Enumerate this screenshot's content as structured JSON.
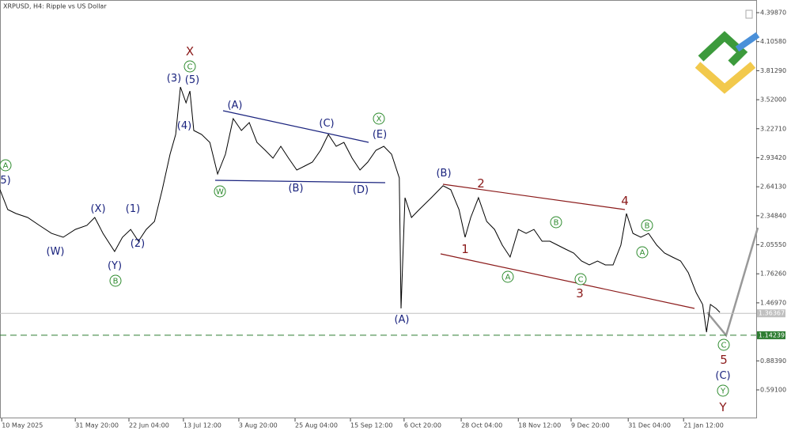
{
  "chart_data": {
    "type": "line",
    "title": "XRPUSD, H4:  Ripple vs US Dollar",
    "color": "#000000",
    "x": [
      0,
      18,
      37,
      64,
      91,
      119,
      146,
      174,
      201,
      219,
      238,
      265,
      283,
      302,
      320,
      338,
      357,
      375,
      393,
      406,
      417,
      430,
      439,
      448,
      466,
      485,
      503,
      521,
      539,
      558,
      576,
      594,
      613,
      631,
      649,
      667,
      686,
      704,
      722,
      741,
      759,
      777,
      795,
      814,
      832,
      850,
      869,
      887,
      905,
      923,
      927,
      936,
      951,
      969,
      997,
      1024,
      1042,
      1061,
      1075,
      1088,
      1106,
      1125,
      1143,
      1161,
      1179,
      1198,
      1216,
      1234,
      1253,
      1271,
      1289,
      1307,
      1326,
      1344,
      1362,
      1381,
      1399,
      1417,
      1435,
      1448,
      1463,
      1481,
      1499,
      1518,
      1536,
      1554,
      1573,
      1591,
      1609,
      1624,
      1633,
      1642,
      1655,
      1664
    ],
    "values": [
      2.611,
      2.411,
      2.371,
      2.331,
      2.251,
      2.171,
      2.132,
      2.211,
      2.251,
      2.331,
      2.171,
      1.988,
      2.132,
      2.211,
      2.092,
      2.211,
      2.291,
      2.611,
      2.97,
      3.169,
      3.648,
      3.489,
      3.608,
      3.209,
      3.169,
      3.089,
      2.77,
      2.97,
      3.329,
      3.209,
      3.289,
      3.089,
      3.01,
      2.93,
      3.05,
      2.93,
      2.81,
      2.85,
      2.89,
      3.01,
      3.169,
      3.05,
      3.089,
      2.93,
      2.81,
      2.89,
      3.01,
      3.05,
      2.97,
      2.73,
      1.413,
      2.531,
      2.331,
      2.411,
      2.531,
      2.651,
      2.611,
      2.411,
      2.132,
      2.331,
      2.531,
      2.291,
      2.211,
      2.052,
      1.932,
      2.211,
      2.171,
      2.211,
      2.092,
      2.092,
      2.052,
      2.012,
      1.972,
      1.892,
      1.852,
      1.892,
      1.852,
      1.852,
      2.052,
      2.371,
      2.171,
      2.132,
      2.171,
      2.052,
      1.972,
      1.932,
      1.892,
      1.773,
      1.573,
      1.453,
      1.174,
      1.453,
      1.413,
      1.373
    ],
    "xlim": [
      0,
      1746
    ],
    "xticks": [
      {
        "value": 4,
        "label": "10 May 2025"
      },
      {
        "value": 174,
        "label": "31 May 20:00"
      },
      {
        "value": 298,
        "label": "22 Jun 04:00"
      },
      {
        "value": 424,
        "label": "13 Jul 12:00"
      },
      {
        "value": 552,
        "label": "3 Aug 20:00"
      },
      {
        "value": 682,
        "label": "25 Aug 04:00"
      },
      {
        "value": 810,
        "label": "15 Sep 12:00"
      },
      {
        "value": 934,
        "label": "6 Oct 20:00"
      },
      {
        "value": 1066,
        "label": "28 Oct 04:00"
      },
      {
        "value": 1198,
        "label": "18 Nov 12:00"
      },
      {
        "value": 1320,
        "label": "9 Dec 20:00"
      },
      {
        "value": 1452,
        "label": "31 Dec 04:00"
      },
      {
        "value": 1580,
        "label": "21 Jan 12:00"
      }
    ],
    "ylim": [
      0.3116,
      4.5264
    ],
    "yticks": [
      {
        "value": 4.3987,
        "label": "4.39870"
      },
      {
        "value": 4.1058,
        "label": "4.10580"
      },
      {
        "value": 3.8129,
        "label": "3.81290"
      },
      {
        "value": 3.52,
        "label": "3.52000"
      },
      {
        "value": 3.2271,
        "label": "3.22710"
      },
      {
        "value": 2.9342,
        "label": "2.93420"
      },
      {
        "value": 2.6413,
        "label": "2.64130"
      },
      {
        "value": 2.3484,
        "label": "2.34840"
      },
      {
        "value": 2.0555,
        "label": "2.05550"
      },
      {
        "value": 1.7626,
        "label": "1.76260"
      },
      {
        "value": 1.4697,
        "label": "1.46970"
      },
      {
        "value": 0.8839,
        "label": "0.88390"
      },
      {
        "value": 0.591,
        "label": "0.59100"
      }
    ],
    "levels": [
      {
        "value": 1.36367,
        "color": "#c0c0c0",
        "dashed": false
      },
      {
        "value": 1.14239,
        "color": "#2e7d32",
        "dashed": true
      }
    ],
    "annotations": [
      {
        "text": "X",
        "color": "#8b1a1a",
        "circled": false
      },
      {
        "text": "C",
        "color": "#2e8b2e",
        "circled": true
      },
      {
        "text": "(3)",
        "color": "#1a237e",
        "circled": false
      },
      {
        "text": "(5)",
        "color": "#1a237e",
        "circled": false
      },
      {
        "text": "(4)",
        "color": "#1a237e",
        "circled": false
      },
      {
        "text": "A",
        "color": "#2e8b2e",
        "circled": true
      },
      {
        "text": "5)",
        "color": "#1a237e",
        "circled": false
      },
      {
        "text": "(X)",
        "color": "#1a237e",
        "circled": false
      },
      {
        "text": "(1)",
        "color": "#1a237e",
        "circled": false
      },
      {
        "text": "(W)",
        "color": "#1a237e",
        "circled": false
      },
      {
        "text": "(2)",
        "color": "#1a237e",
        "circled": false
      },
      {
        "text": "(Y)",
        "color": "#1a237e",
        "circled": false
      },
      {
        "text": "B",
        "color": "#2e8b2e",
        "circled": true
      },
      {
        "text": "(A)",
        "color": "#1a237e",
        "circled": false
      },
      {
        "text": "(C)",
        "color": "#1a237e",
        "circled": false
      },
      {
        "text": "X",
        "color": "#2e8b2e",
        "circled": true
      },
      {
        "text": "(E)",
        "color": "#1a237e",
        "circled": false
      },
      {
        "text": "W",
        "color": "#2e8b2e",
        "circled": true
      },
      {
        "text": "(B)",
        "color": "#1a237e",
        "circled": false
      },
      {
        "text": "(D)",
        "color": "#1a237e",
        "circled": false
      },
      {
        "text": "(A)",
        "color": "#1a237e",
        "circled": false
      },
      {
        "text": "(B)",
        "color": "#1a237e",
        "circled": false
      },
      {
        "text": "2",
        "color": "#8b1a1a",
        "circled": false
      },
      {
        "text": "4",
        "color": "#8b1a1a",
        "circled": false
      },
      {
        "text": "1",
        "color": "#8b1a1a",
        "circled": false
      },
      {
        "text": "3",
        "color": "#8b1a1a",
        "circled": false
      },
      {
        "text": "B",
        "color": "#2e8b2e",
        "circled": true
      },
      {
        "text": "B",
        "color": "#2e8b2e",
        "circled": true
      },
      {
        "text": "A",
        "color": "#2e8b2e",
        "circled": true
      },
      {
        "text": "A",
        "color": "#2e8b2e",
        "circled": true
      },
      {
        "text": "C",
        "color": "#2e8b2e",
        "circled": true
      },
      {
        "text": "C",
        "color": "#2e8b2e",
        "circled": true
      },
      {
        "text": "5",
        "color": "#8b1a1a",
        "circled": false
      },
      {
        "text": "(C)",
        "color": "#1a237e",
        "circled": false
      },
      {
        "text": "Y",
        "color": "#2e8b2e",
        "circled": true
      },
      {
        "text": "Y",
        "color": "#8b1a1a",
        "circled": false
      }
    ]
  }
}
